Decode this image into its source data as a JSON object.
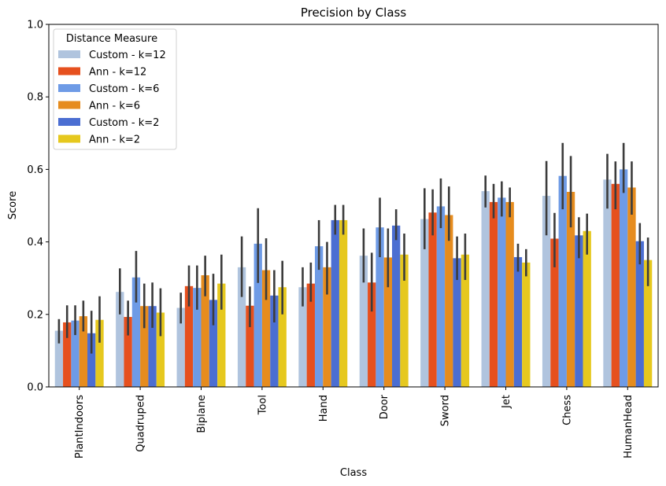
{
  "chart_data": {
    "type": "bar",
    "title": "Precision by Class",
    "xlabel": "Class",
    "ylabel": "Score",
    "ylim": [
      0,
      1.0
    ],
    "yticks": [
      "0.0",
      "0.2",
      "0.4",
      "0.6",
      "0.8",
      "1.0"
    ],
    "legend": {
      "title": "Distance Measure",
      "placement": "top-left"
    },
    "categories": [
      "PlantIndoors",
      "Quadruped",
      "Biplane",
      "Tool",
      "Hand",
      "Door",
      "Sword",
      "Jet",
      "Chess",
      "HumanHead"
    ],
    "series": [
      {
        "name": "Custom - k=12",
        "color": "#b0c4de",
        "values": [
          0.155,
          0.262,
          0.218,
          0.33,
          0.275,
          0.362,
          0.463,
          0.54,
          0.527,
          0.572
        ],
        "err_low": [
          0.12,
          0.2,
          0.175,
          0.248,
          0.222,
          0.288,
          0.38,
          0.495,
          0.418,
          0.492
        ],
        "err_high": [
          0.187,
          0.327,
          0.26,
          0.415,
          0.33,
          0.437,
          0.548,
          0.583,
          0.623,
          0.643
        ]
      },
      {
        "name": "Ann - k=12",
        "color": "#e6501e",
        "values": [
          0.178,
          0.193,
          0.278,
          0.224,
          0.285,
          0.288,
          0.481,
          0.51,
          0.409,
          0.56
        ],
        "err_low": [
          0.135,
          0.142,
          0.222,
          0.165,
          0.235,
          0.208,
          0.418,
          0.465,
          0.33,
          0.49
        ],
        "err_high": [
          0.225,
          0.238,
          0.335,
          0.277,
          0.343,
          0.37,
          0.545,
          0.56,
          0.48,
          0.622
        ]
      },
      {
        "name": "Custom - k=6",
        "color": "#6e9be6",
        "values": [
          0.183,
          0.302,
          0.273,
          0.395,
          0.388,
          0.44,
          0.498,
          0.522,
          0.582,
          0.6
        ],
        "err_low": [
          0.143,
          0.233,
          0.213,
          0.287,
          0.323,
          0.358,
          0.438,
          0.47,
          0.49,
          0.535
        ],
        "err_high": [
          0.225,
          0.375,
          0.335,
          0.493,
          0.46,
          0.522,
          0.575,
          0.567,
          0.673,
          0.673
        ]
      },
      {
        "name": "Ann - k=6",
        "color": "#e68c1e",
        "values": [
          0.195,
          0.223,
          0.308,
          0.322,
          0.33,
          0.357,
          0.474,
          0.51,
          0.538,
          0.55
        ],
        "err_low": [
          0.153,
          0.162,
          0.25,
          0.24,
          0.255,
          0.275,
          0.403,
          0.468,
          0.44,
          0.475
        ],
        "err_high": [
          0.238,
          0.285,
          0.362,
          0.41,
          0.4,
          0.437,
          0.553,
          0.55,
          0.637,
          0.622
        ]
      },
      {
        "name": "Custom - k=2",
        "color": "#4b6ed2",
        "values": [
          0.148,
          0.223,
          0.24,
          0.252,
          0.46,
          0.445,
          0.355,
          0.358,
          0.418,
          0.402
        ],
        "err_low": [
          0.092,
          0.163,
          0.17,
          0.178,
          0.42,
          0.405,
          0.295,
          0.318,
          0.355,
          0.338
        ],
        "err_high": [
          0.21,
          0.288,
          0.312,
          0.322,
          0.502,
          0.49,
          0.415,
          0.395,
          0.468,
          0.452
        ]
      },
      {
        "name": "Ann - k=2",
        "color": "#e6c81e",
        "values": [
          0.185,
          0.205,
          0.285,
          0.275,
          0.46,
          0.365,
          0.365,
          0.343,
          0.43,
          0.35
        ],
        "err_low": [
          0.122,
          0.14,
          0.213,
          0.2,
          0.42,
          0.293,
          0.295,
          0.305,
          0.365,
          0.278
        ],
        "err_high": [
          0.25,
          0.272,
          0.365,
          0.348,
          0.502,
          0.423,
          0.423,
          0.38,
          0.478,
          0.412
        ]
      }
    ],
    "grid": false,
    "errorbar_color": "#3c3c3c"
  }
}
